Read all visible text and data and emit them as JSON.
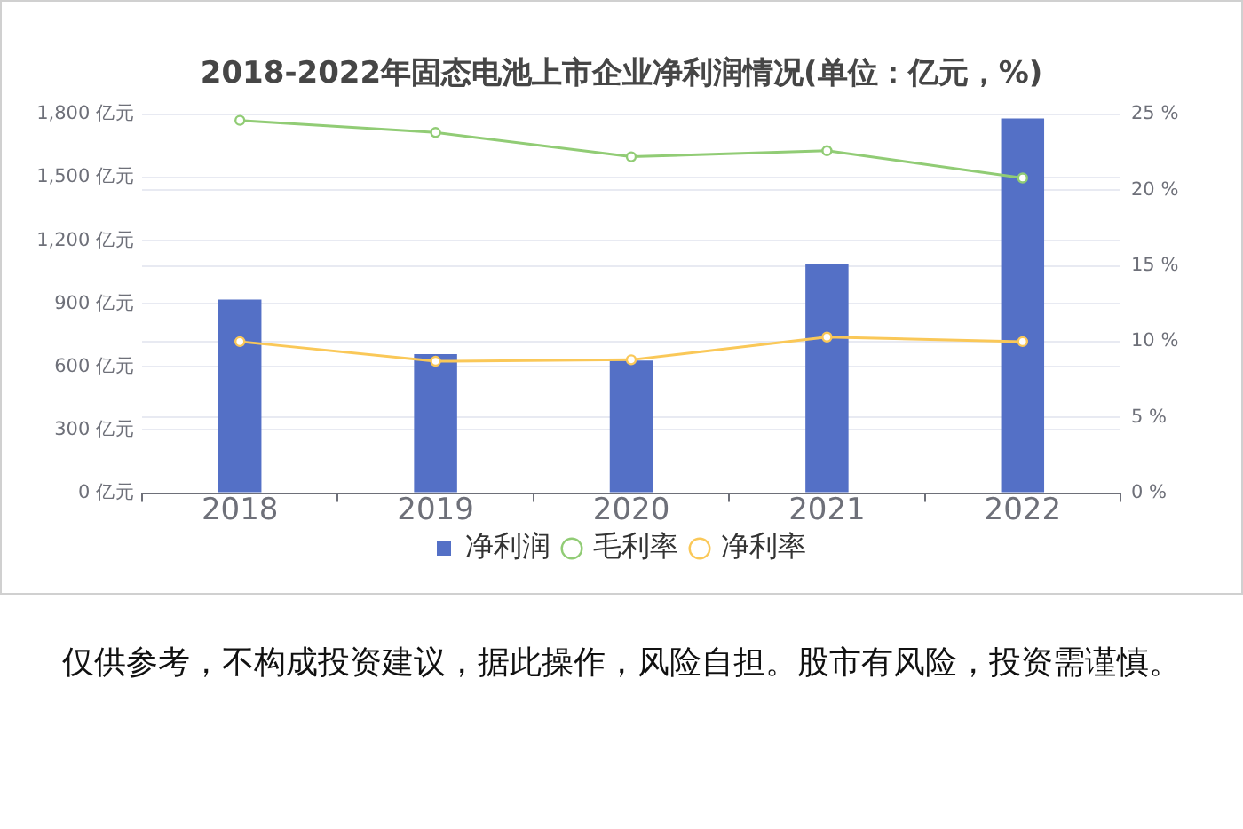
{
  "chart_data": {
    "type": "bar",
    "title": "2018-2022年固态电池上市企业净利润情况(单位：亿元，%)",
    "categories": [
      "2018",
      "2019",
      "2020",
      "2021",
      "2022"
    ],
    "series": [
      {
        "name": "净利润",
        "color": "#5470c6",
        "values": [
          920,
          660,
          630,
          1090,
          1780
        ]
      },
      {
        "name": "毛利率",
        "type": "line",
        "axis": "y2",
        "color": "#91cc75",
        "values": [
          24.6,
          23.8,
          22.2,
          22.6,
          20.8
        ]
      },
      {
        "name": "净利率",
        "type": "line",
        "axis": "y2",
        "color": "#fac858",
        "values": [
          10.0,
          8.7,
          8.8,
          10.3,
          10.0
        ]
      }
    ],
    "ylim": [
      0,
      1800
    ],
    "yticks": [
      {
        "value": 0,
        "label": "0 亿元"
      },
      {
        "value": 300,
        "label": "300 亿元"
      },
      {
        "value": 600,
        "label": "600 亿元"
      },
      {
        "value": 900,
        "label": "900 亿元"
      },
      {
        "value": 1200,
        "label": "1,200 亿元"
      },
      {
        "value": 1500,
        "label": "1,500 亿元"
      },
      {
        "value": 1800,
        "label": "1,800 亿元"
      }
    ],
    "y2lim": [
      0,
      25
    ],
    "y2ticks": [
      {
        "value": 0,
        "label": "0 %"
      },
      {
        "value": 5,
        "label": "5 %"
      },
      {
        "value": 10,
        "label": "10 %"
      },
      {
        "value": 15,
        "label": "15 %"
      },
      {
        "value": 20,
        "label": "20 %"
      },
      {
        "value": 25,
        "label": "25 %"
      }
    ],
    "grid": true,
    "legend": "bottom",
    "marker": "circle",
    "annotations": [
      "仅供参考，不构成投资建议，据此操作，风险自担。股市有风险，投资需谨慎。"
    ]
  }
}
